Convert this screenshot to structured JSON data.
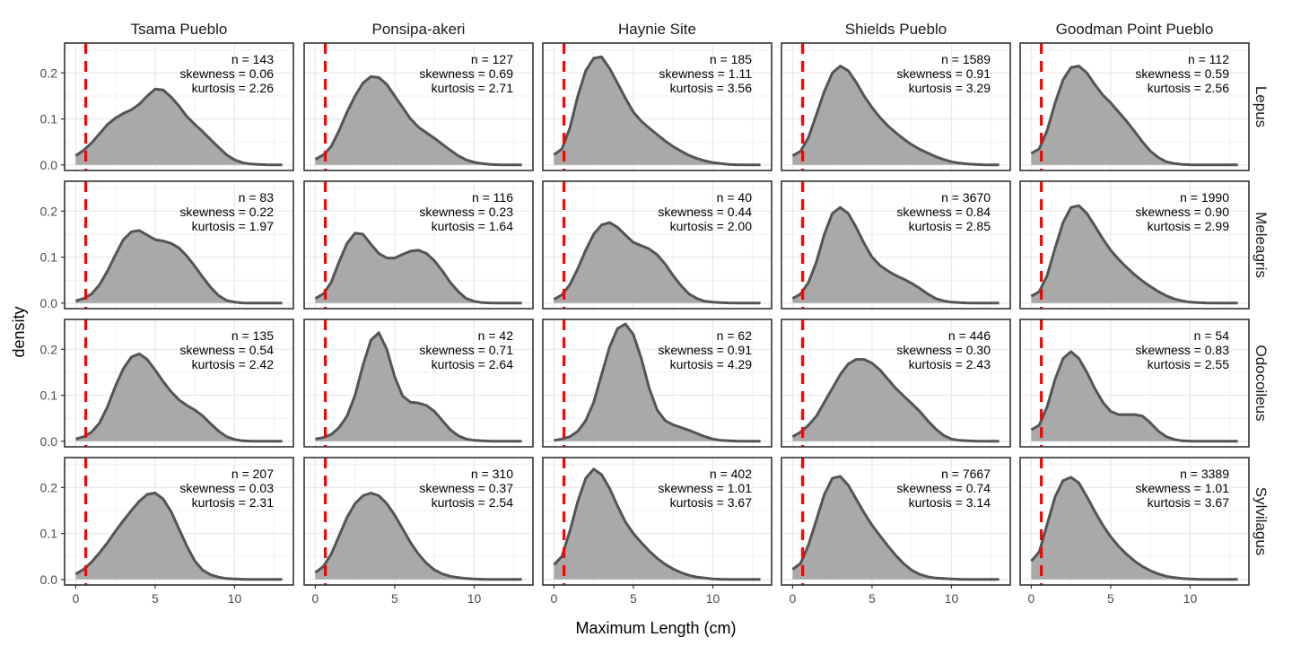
{
  "chart_data": {
    "type": "area",
    "title": "",
    "xlabel": "Maximum Length (cm)",
    "ylabel": "density",
    "xlim": [
      -0.7,
      13.7
    ],
    "ylim": [
      -0.012,
      0.265
    ],
    "xticks": [
      0,
      5,
      10
    ],
    "xtick_labels": [
      "0",
      "5",
      "10"
    ],
    "yticks": [
      0.0,
      0.1,
      0.2
    ],
    "ytick_labels": [
      "0.0",
      "0.1",
      "0.2"
    ],
    "grid": true,
    "reference_line": {
      "x": 0.635,
      "style": "dashed",
      "color": "#ff0000"
    },
    "fill_color": "#a9a9a9",
    "line_color": "#545454",
    "columns": [
      "Tsama Pueblo",
      "Ponsipa-akeri",
      "Haynie Site",
      "Shields Pueblo",
      "Goodman Point Pueblo"
    ],
    "rows": [
      "Lepus",
      "Meleagris",
      "Odocoileus",
      "Sylvilagus"
    ],
    "x_grid": [
      0,
      0.5,
      1,
      1.5,
      2,
      2.5,
      3,
      3.5,
      4,
      4.5,
      5,
      5.5,
      6,
      6.5,
      7,
      7.5,
      8,
      8.5,
      9,
      9.5,
      10,
      10.5,
      11,
      11.5,
      12,
      12.5,
      13
    ],
    "panels": [
      [
        {
          "n": "n = 143",
          "skewness": "skewness = 0.06",
          "kurtosis": "kurtosis = 2.26",
          "density": [
            0.02,
            0.032,
            0.048,
            0.068,
            0.088,
            0.102,
            0.112,
            0.12,
            0.132,
            0.15,
            0.165,
            0.163,
            0.148,
            0.128,
            0.105,
            0.088,
            0.072,
            0.055,
            0.038,
            0.022,
            0.011,
            0.005,
            0.002,
            0.001,
            0.0005,
            0.0002,
            0.0001
          ]
        },
        {
          "n": "n = 127",
          "skewness": "skewness = 0.69",
          "kurtosis": "kurtosis = 2.71",
          "density": [
            0.012,
            0.022,
            0.04,
            0.075,
            0.115,
            0.15,
            0.178,
            0.192,
            0.19,
            0.175,
            0.15,
            0.125,
            0.1,
            0.082,
            0.07,
            0.058,
            0.045,
            0.032,
            0.02,
            0.011,
            0.006,
            0.003,
            0.001,
            0.0005,
            0.0002,
            0.0001,
            0.0001
          ]
        },
        {
          "n": "n = 185",
          "skewness": "skewness = 1.11",
          "kurtosis": "kurtosis = 3.56",
          "density": [
            0.022,
            0.035,
            0.08,
            0.15,
            0.205,
            0.232,
            0.235,
            0.21,
            0.178,
            0.145,
            0.115,
            0.095,
            0.08,
            0.066,
            0.052,
            0.04,
            0.03,
            0.021,
            0.014,
            0.009,
            0.005,
            0.003,
            0.001,
            0.0005,
            0.0002,
            0.0001,
            0.0001
          ]
        },
        {
          "n": "n = 1589",
          "skewness": "skewness = 0.91",
          "kurtosis": "kurtosis = 3.29",
          "density": [
            0.02,
            0.03,
            0.06,
            0.11,
            0.16,
            0.2,
            0.215,
            0.205,
            0.18,
            0.15,
            0.125,
            0.103,
            0.085,
            0.07,
            0.056,
            0.044,
            0.034,
            0.026,
            0.018,
            0.012,
            0.007,
            0.004,
            0.002,
            0.001,
            0.0005,
            0.0002,
            0.0001
          ]
        },
        {
          "n": "n = 112",
          "skewness": "skewness = 0.59",
          "kurtosis": "kurtosis = 2.56",
          "density": [
            0.025,
            0.035,
            0.075,
            0.135,
            0.185,
            0.212,
            0.215,
            0.2,
            0.175,
            0.152,
            0.135,
            0.115,
            0.095,
            0.073,
            0.05,
            0.03,
            0.016,
            0.007,
            0.003,
            0.001,
            0.0005,
            0.0002,
            0.0001,
            0.0001,
            0.0001,
            0.0001,
            0.0001
          ]
        }
      ],
      [
        {
          "n": "n = 83",
          "skewness": "skewness = 0.22",
          "kurtosis": "kurtosis = 1.97",
          "density": [
            0.005,
            0.01,
            0.02,
            0.04,
            0.07,
            0.105,
            0.138,
            0.155,
            0.158,
            0.148,
            0.138,
            0.135,
            0.13,
            0.12,
            0.102,
            0.08,
            0.056,
            0.034,
            0.016,
            0.006,
            0.002,
            0.0005,
            0.0002,
            0.0001,
            0.0001,
            0.0001,
            0.0001
          ]
        },
        {
          "n": "n = 116",
          "skewness": "skewness = 0.23",
          "kurtosis": "kurtosis = 1.64",
          "density": [
            0.01,
            0.02,
            0.045,
            0.09,
            0.13,
            0.152,
            0.15,
            0.128,
            0.108,
            0.098,
            0.098,
            0.106,
            0.113,
            0.115,
            0.108,
            0.092,
            0.07,
            0.045,
            0.025,
            0.01,
            0.004,
            0.001,
            0.0005,
            0.0002,
            0.0001,
            0.0001,
            0.0001
          ]
        },
        {
          "n": "n = 40",
          "skewness": "skewness = 0.44",
          "kurtosis": "kurtosis = 2.00",
          "density": [
            0.008,
            0.018,
            0.04,
            0.075,
            0.115,
            0.15,
            0.17,
            0.175,
            0.165,
            0.148,
            0.132,
            0.125,
            0.118,
            0.105,
            0.085,
            0.06,
            0.038,
            0.02,
            0.01,
            0.004,
            0.002,
            0.001,
            0.0005,
            0.0002,
            0.0001,
            0.0001,
            0.0001
          ]
        },
        {
          "n": "n = 3670",
          "skewness": "skewness = 0.84",
          "kurtosis": "kurtosis = 2.85",
          "density": [
            0.01,
            0.02,
            0.045,
            0.09,
            0.15,
            0.195,
            0.208,
            0.195,
            0.165,
            0.13,
            0.1,
            0.082,
            0.07,
            0.06,
            0.052,
            0.043,
            0.032,
            0.02,
            0.01,
            0.005,
            0.002,
            0.001,
            0.0005,
            0.0002,
            0.0001,
            0.0001,
            0.0001
          ]
        },
        {
          "n": "n = 1990",
          "skewness": "skewness = 0.90",
          "kurtosis": "kurtosis = 2.99",
          "density": [
            0.015,
            0.025,
            0.06,
            0.12,
            0.175,
            0.208,
            0.212,
            0.195,
            0.168,
            0.14,
            0.115,
            0.095,
            0.078,
            0.062,
            0.048,
            0.036,
            0.025,
            0.016,
            0.009,
            0.005,
            0.002,
            0.001,
            0.0005,
            0.0002,
            0.0001,
            0.0001,
            0.0001
          ]
        }
      ],
      [
        {
          "n": "n = 135",
          "skewness": "skewness = 0.54",
          "kurtosis": "kurtosis = 2.42",
          "density": [
            0.005,
            0.01,
            0.02,
            0.04,
            0.075,
            0.12,
            0.158,
            0.183,
            0.19,
            0.178,
            0.155,
            0.13,
            0.108,
            0.09,
            0.078,
            0.068,
            0.055,
            0.038,
            0.022,
            0.01,
            0.004,
            0.001,
            0.0005,
            0.0002,
            0.0001,
            0.0001,
            0.0001
          ]
        },
        {
          "n": "n = 42",
          "skewness": "skewness = 0.71",
          "kurtosis": "kurtosis = 2.64",
          "density": [
            0.005,
            0.008,
            0.015,
            0.03,
            0.055,
            0.1,
            0.165,
            0.22,
            0.236,
            0.2,
            0.14,
            0.098,
            0.085,
            0.083,
            0.078,
            0.065,
            0.045,
            0.025,
            0.012,
            0.005,
            0.002,
            0.001,
            0.0005,
            0.0002,
            0.0001,
            0.0001,
            0.0001
          ]
        },
        {
          "n": "n = 62",
          "skewness": "skewness = 0.91",
          "kurtosis": "kurtosis = 4.29",
          "density": [
            0.002,
            0.005,
            0.01,
            0.022,
            0.045,
            0.085,
            0.145,
            0.205,
            0.245,
            0.255,
            0.232,
            0.18,
            0.115,
            0.068,
            0.045,
            0.036,
            0.03,
            0.024,
            0.017,
            0.01,
            0.005,
            0.002,
            0.001,
            0.0005,
            0.0002,
            0.0001,
            0.0001
          ]
        },
        {
          "n": "n = 446",
          "skewness": "skewness = 0.30",
          "kurtosis": "kurtosis = 2.43",
          "density": [
            0.01,
            0.02,
            0.035,
            0.055,
            0.085,
            0.115,
            0.145,
            0.168,
            0.178,
            0.178,
            0.17,
            0.155,
            0.135,
            0.115,
            0.098,
            0.082,
            0.065,
            0.045,
            0.027,
            0.013,
            0.005,
            0.002,
            0.001,
            0.0005,
            0.0002,
            0.0001,
            0.0001
          ]
        },
        {
          "n": "n = 54",
          "skewness": "skewness = 0.83",
          "kurtosis": "kurtosis = 2.55",
          "density": [
            0.025,
            0.035,
            0.075,
            0.135,
            0.18,
            0.195,
            0.18,
            0.15,
            0.115,
            0.085,
            0.065,
            0.058,
            0.058,
            0.058,
            0.055,
            0.04,
            0.022,
            0.01,
            0.004,
            0.001,
            0.0005,
            0.0002,
            0.0001,
            0.0001,
            0.0001,
            0.0001,
            0.0001
          ]
        }
      ],
      [
        {
          "n": "n = 207",
          "skewness": "skewness = 0.03",
          "kurtosis": "kurtosis = 2.31",
          "density": [
            0.012,
            0.022,
            0.038,
            0.058,
            0.08,
            0.105,
            0.128,
            0.15,
            0.17,
            0.185,
            0.188,
            0.175,
            0.148,
            0.11,
            0.072,
            0.04,
            0.02,
            0.01,
            0.005,
            0.002,
            0.001,
            0.0005,
            0.0002,
            0.0001,
            0.0001,
            0.0001,
            0.0001
          ]
        },
        {
          "n": "n = 310",
          "skewness": "skewness = 0.37",
          "kurtosis": "kurtosis = 2.54",
          "density": [
            0.015,
            0.028,
            0.055,
            0.095,
            0.135,
            0.165,
            0.182,
            0.188,
            0.182,
            0.165,
            0.14,
            0.11,
            0.08,
            0.055,
            0.035,
            0.021,
            0.012,
            0.007,
            0.004,
            0.002,
            0.001,
            0.0005,
            0.0002,
            0.0001,
            0.0001,
            0.0001,
            0.0001
          ]
        },
        {
          "n": "n = 402",
          "skewness": "skewness = 1.01",
          "kurtosis": "kurtosis = 3.67",
          "density": [
            0.032,
            0.05,
            0.105,
            0.17,
            0.22,
            0.24,
            0.228,
            0.198,
            0.16,
            0.125,
            0.1,
            0.08,
            0.062,
            0.046,
            0.033,
            0.023,
            0.015,
            0.009,
            0.005,
            0.003,
            0.001,
            0.0005,
            0.0002,
            0.0001,
            0.0001,
            0.0001,
            0.0001
          ]
        },
        {
          "n": "n = 7667",
          "skewness": "skewness = 0.74",
          "kurtosis": "kurtosis = 3.14",
          "density": [
            0.022,
            0.035,
            0.075,
            0.13,
            0.185,
            0.22,
            0.224,
            0.205,
            0.175,
            0.145,
            0.118,
            0.095,
            0.073,
            0.052,
            0.034,
            0.02,
            0.011,
            0.006,
            0.003,
            0.002,
            0.001,
            0.0005,
            0.0002,
            0.0001,
            0.0001,
            0.0001,
            0.0001
          ]
        },
        {
          "n": "n = 3389",
          "skewness": "skewness = 1.01",
          "kurtosis": "kurtosis = 3.67",
          "density": [
            0.04,
            0.06,
            0.12,
            0.18,
            0.215,
            0.222,
            0.21,
            0.18,
            0.148,
            0.118,
            0.093,
            0.072,
            0.055,
            0.04,
            0.028,
            0.019,
            0.012,
            0.007,
            0.004,
            0.002,
            0.001,
            0.0005,
            0.0002,
            0.0001,
            0.0001,
            0.0001,
            0.0001
          ]
        }
      ]
    ]
  }
}
